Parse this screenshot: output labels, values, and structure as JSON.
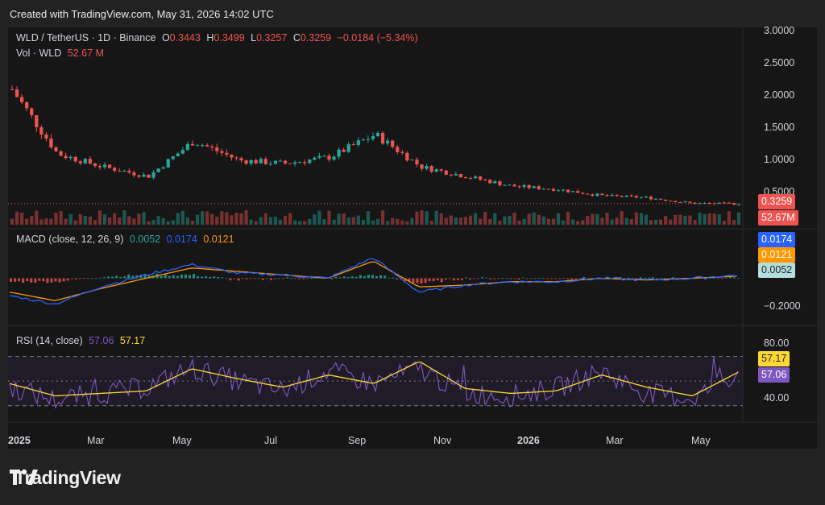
{
  "header": {
    "created": "Created with TradingView.com, May 31, 2026 14:02 UTC"
  },
  "colors": {
    "up": "#26a69a",
    "down": "#ef5350",
    "macd": "#2962ff",
    "signal": "#ff9800",
    "rsi": "#7e57c2",
    "rsi_ma": "#fdd835",
    "hist_pos": "#26a69a",
    "hist_neg": "#ef5350"
  },
  "price_legend": {
    "symbol": "WLD / TetherUS · 1D · Binance",
    "o_label": "O",
    "o": "0.3443",
    "h_label": "H",
    "h": "0.3499",
    "l_label": "L",
    "l": "0.3257",
    "c_label": "C",
    "c": "0.3259",
    "change": "−0.0184 (−5.34%)",
    "vol_label": "Vol · WLD",
    "vol": "52.67 M"
  },
  "macd_legend": {
    "label": "MACD (close, 12, 26, 9)",
    "hist": "0.0052",
    "macd": "0.0174",
    "signal": "0.0121"
  },
  "rsi_legend": {
    "label": "RSI (14, close)",
    "rsi": "57.06",
    "ma": "57.17"
  },
  "price_axis": {
    "ticks": [
      "3.0000",
      "2.5000",
      "2.0000",
      "1.5000",
      "1.0000",
      "0.5000"
    ],
    "last_price_tag": "0.3259",
    "volume_tag": "52.67M"
  },
  "macd_axis": {
    "ticks": [
      "−0.2000"
    ],
    "tags": [
      "0.0174",
      "0.0121",
      "0.0052"
    ]
  },
  "rsi_axis": {
    "ticks": [
      "80.00",
      "40.00"
    ],
    "tags": [
      "57.17",
      "57.06"
    ]
  },
  "time_axis": {
    "labels": [
      "2025",
      "Mar",
      "May",
      "Jul",
      "Sep",
      "Nov",
      "2026",
      "Mar",
      "May"
    ]
  },
  "chart_data": [
    {
      "type": "candlestick",
      "title": "WLD / TetherUS · 1D · Binance",
      "x": [
        "2025-01",
        "2025-02",
        "2025-03",
        "2025-04",
        "2025-05",
        "2025-06",
        "2025-07",
        "2025-08",
        "2025-09",
        "2025-10",
        "2025-11",
        "2025-12",
        "2026-01",
        "2026-02",
        "2026-03",
        "2026-04",
        "2026-05"
      ],
      "approx_close": [
        2.1,
        1.1,
        0.9,
        0.75,
        1.3,
        1.0,
        0.95,
        1.05,
        1.4,
        0.9,
        0.75,
        0.6,
        0.55,
        0.45,
        0.42,
        0.33,
        0.3259
      ],
      "ylim": [
        0,
        3.0
      ],
      "last_close": 0.3259
    },
    {
      "type": "line",
      "title": "MACD (close, 12, 26, 9)",
      "x": [
        "2025-01",
        "2025-02",
        "2025-03",
        "2025-04",
        "2025-05",
        "2025-06",
        "2025-07",
        "2025-08",
        "2025-09",
        "2025-10",
        "2025-11",
        "2025-12",
        "2026-01",
        "2026-02",
        "2026-03",
        "2026-04",
        "2026-05"
      ],
      "series": [
        {
          "name": "MACD",
          "values": [
            -0.1,
            -0.15,
            -0.05,
            0.02,
            0.08,
            0.03,
            0.02,
            0.0,
            0.12,
            -0.08,
            -0.04,
            -0.02,
            -0.02,
            0.0,
            -0.01,
            0.0,
            0.0174
          ]
        },
        {
          "name": "Signal",
          "values": [
            -0.08,
            -0.13,
            -0.06,
            0.0,
            0.06,
            0.04,
            0.02,
            0.0,
            0.1,
            -0.05,
            -0.04,
            -0.02,
            -0.02,
            0.0,
            -0.01,
            0.0,
            0.0121
          ]
        }
      ],
      "histogram_last": 0.0052
    },
    {
      "type": "line",
      "title": "RSI (14, close)",
      "x": [
        "2025-01",
        "2025-02",
        "2025-03",
        "2025-04",
        "2025-05",
        "2025-06",
        "2025-07",
        "2025-08",
        "2025-09",
        "2025-10",
        "2025-11",
        "2025-12",
        "2026-01",
        "2026-02",
        "2026-03",
        "2026-04",
        "2026-05"
      ],
      "series": [
        {
          "name": "RSI",
          "values": [
            45,
            35,
            40,
            45,
            60,
            50,
            42,
            58,
            48,
            60,
            40,
            38,
            44,
            58,
            40,
            36,
            57.06
          ]
        },
        {
          "name": "RSI MA",
          "values": [
            48,
            38,
            40,
            42,
            60,
            52,
            45,
            55,
            48,
            66,
            44,
            40,
            42,
            55,
            45,
            38,
            57.17
          ]
        }
      ],
      "levels": [
        70,
        50,
        30
      ],
      "ylim": [
        20,
        90
      ]
    }
  ]
}
